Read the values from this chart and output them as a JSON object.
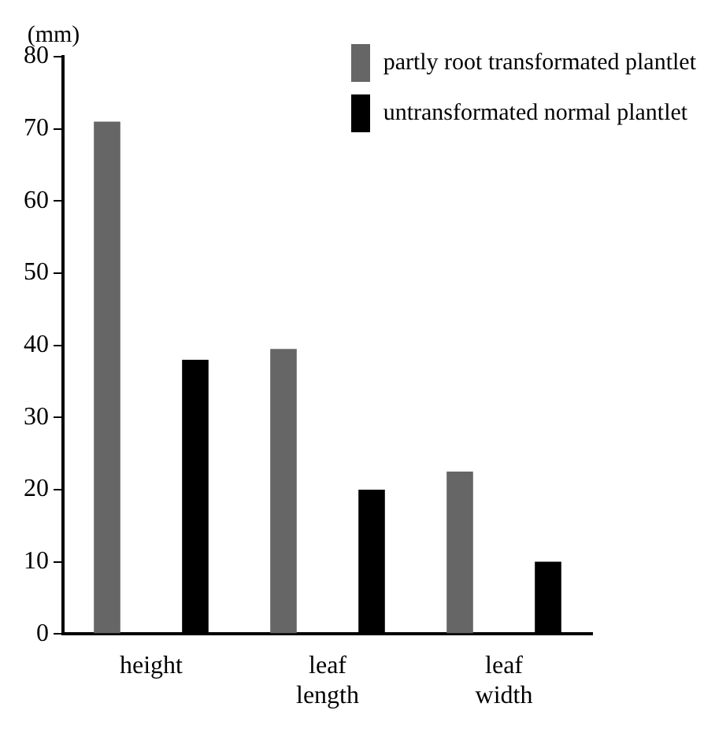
{
  "chart_data": {
    "type": "bar",
    "ylabel": "(mm)",
    "categories": [
      "height",
      "leaf length",
      "leaf width"
    ],
    "series": [
      {
        "name": "partly root transformated plantlet",
        "color": "#666666",
        "values": [
          71,
          39.5,
          22.5
        ]
      },
      {
        "name": "untransformated normal plantlet",
        "color": "#000000",
        "values": [
          38,
          20,
          10
        ]
      }
    ],
    "ylim": [
      0,
      80
    ],
    "yticks": [
      0,
      10,
      20,
      30,
      40,
      50,
      60,
      70,
      80
    ],
    "grid": false,
    "legend": "top right"
  }
}
